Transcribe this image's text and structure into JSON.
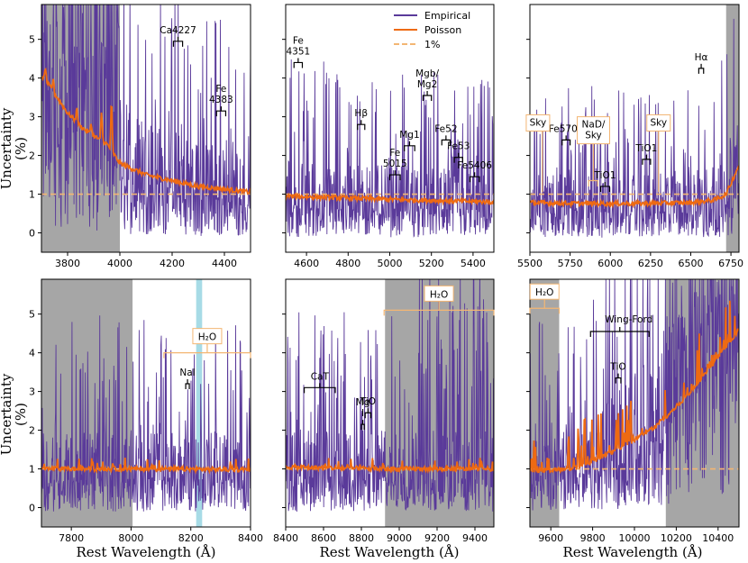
{
  "colors": {
    "empirical": "#5a3a9a",
    "poisson": "#ee6a12",
    "one_percent": "#f3b673",
    "shade_gray": "#a6a6a6",
    "shade_blue": "#a7dbe6",
    "box_edge": "#f3b673"
  },
  "labels": {
    "ylabel_line1": "Uncertainty",
    "ylabel_line2": "(%)",
    "xlabel": "Rest Wavelength (Å)"
  },
  "legend": {
    "empirical": "Empirical",
    "poisson": "Poisson",
    "one_percent": "1%"
  },
  "chart_data": [
    {
      "type": "line",
      "panel": 1,
      "xlim": [
        3700,
        4500
      ],
      "ylim": [
        -0.5,
        5.9
      ],
      "xticks": [
        3800,
        4000,
        4200,
        4400
      ],
      "yticks": [
        0,
        1,
        2,
        3,
        4,
        5
      ],
      "shaded": [
        {
          "x0": 3700,
          "x1": 4000,
          "color": "gray"
        }
      ],
      "poisson_profile": [
        [
          3700,
          4.05
        ],
        [
          3720,
          3.9
        ],
        [
          3760,
          3.5
        ],
        [
          3800,
          3.1
        ],
        [
          3850,
          2.75
        ],
        [
          3900,
          2.5
        ],
        [
          3950,
          2.3
        ],
        [
          4000,
          1.8
        ],
        [
          4100,
          1.5
        ],
        [
          4200,
          1.35
        ],
        [
          4300,
          1.2
        ],
        [
          4400,
          1.13
        ],
        [
          4500,
          1.05
        ]
      ],
      "poisson_spikes": [
        [
          3715,
          4.3
        ],
        [
          3745,
          4.0
        ],
        [
          3770,
          3.2
        ],
        [
          3815,
          3.0
        ],
        [
          3835,
          3.3
        ],
        [
          3890,
          2.85
        ],
        [
          3930,
          3.2
        ],
        [
          3968,
          3.6
        ]
      ],
      "features": [
        {
          "name": "Ca4227",
          "x0": 4205,
          "x1": 4240,
          "y": 4.95
        },
        {
          "name": "Fe\n4383",
          "x0": 4370,
          "x1": 4405,
          "y": 3.15
        }
      ]
    },
    {
      "type": "line",
      "panel": 2,
      "xlim": [
        4500,
        5500
      ],
      "ylim": [
        -0.5,
        5.9
      ],
      "xticks": [
        4600,
        4800,
        5000,
        5200,
        5400
      ],
      "yticks": [
        0,
        1,
        2,
        3,
        4,
        5
      ],
      "shaded": [],
      "poisson_profile": [
        [
          4500,
          0.95
        ],
        [
          4800,
          0.9
        ],
        [
          5100,
          0.85
        ],
        [
          5500,
          0.8
        ]
      ],
      "poisson_spikes": [],
      "features": [
        {
          "name": "Fe\n4351",
          "x0": 4540,
          "x1": 4580,
          "y": 4.4
        },
        {
          "name": "Hβ",
          "x0": 4845,
          "x1": 4880,
          "y": 2.8
        },
        {
          "name": "Fe\n5015",
          "x0": 5000,
          "x1": 5050,
          "y": 1.5
        },
        {
          "name": "Mg1",
          "x0": 5070,
          "x1": 5120,
          "y": 2.25
        },
        {
          "name": "Mgb/\nMg2",
          "x0": 5160,
          "x1": 5200,
          "y": 3.55
        },
        {
          "name": "Fe52",
          "x0": 5250,
          "x1": 5290,
          "y": 2.4
        },
        {
          "name": "Fe53",
          "x0": 5310,
          "x1": 5350,
          "y": 1.95
        },
        {
          "name": "Fe5406",
          "x0": 5385,
          "x1": 5430,
          "y": 1.45
        }
      ],
      "legend": true
    },
    {
      "type": "line",
      "panel": 3,
      "xlim": [
        5500,
        6800
      ],
      "ylim": [
        -0.5,
        5.9
      ],
      "xticks": [
        5500,
        5750,
        6000,
        6250,
        6500,
        6750
      ],
      "yticks": [
        0,
        1,
        2,
        3,
        4,
        5
      ],
      "shaded": [
        {
          "x0": 6720,
          "x1": 6800,
          "color": "gray"
        }
      ],
      "poisson_profile": [
        [
          5500,
          0.78
        ],
        [
          5800,
          0.76
        ],
        [
          6200,
          0.76
        ],
        [
          6500,
          0.78
        ],
        [
          6650,
          0.85
        ],
        [
          6720,
          1.0
        ],
        [
          6800,
          1.75
        ]
      ],
      "poisson_spikes": [],
      "features": [
        {
          "name": "Fe5709",
          "x0": 5700,
          "x1": 5750,
          "y": 2.4
        },
        {
          "name": "TiO1",
          "x0": 5940,
          "x1": 5995,
          "y": 1.2
        },
        {
          "name": "TiO1",
          "x0": 6200,
          "x1": 6250,
          "y": 1.9
        },
        {
          "name": "Hα",
          "x0": 6550,
          "x1": 6580,
          "y": 4.25
        }
      ],
      "boxed": [
        {
          "name": "Sky",
          "x": 5550,
          "line_x": 5577
        },
        {
          "name": "NaD/\nSky",
          "x": 5895,
          "line_x": 5893
        },
        {
          "name": "Sky",
          "x": 6300,
          "line_x": 6300
        }
      ]
    },
    {
      "type": "line",
      "panel": 4,
      "xlim": [
        7700,
        8400
      ],
      "ylim": [
        -0.5,
        5.9
      ],
      "xticks": [
        7800,
        8000,
        8200,
        8400
      ],
      "yticks": [
        0,
        1,
        2,
        3,
        4,
        5
      ],
      "shaded": [
        {
          "x0": 7700,
          "x1": 8005,
          "color": "gray"
        },
        {
          "x0": 8218,
          "x1": 8238,
          "color": "blue"
        }
      ],
      "poisson_profile": [
        [
          7700,
          1.0
        ],
        [
          8100,
          1.0
        ],
        [
          8400,
          0.98
        ]
      ],
      "poisson_spikes": [],
      "features": [
        {
          "name": "NaI",
          "x0": 8183,
          "x1": 8195,
          "y": 3.2
        }
      ],
      "h2o": [
        {
          "name": "H₂O",
          "x0": 8110,
          "x1": 8400,
          "y": 4.0
        }
      ]
    },
    {
      "type": "line",
      "panel": 5,
      "xlim": [
        8400,
        9500
      ],
      "ylim": [
        -0.5,
        5.9
      ],
      "xticks": [
        8400,
        8600,
        8800,
        9000,
        9200,
        9400
      ],
      "yticks": [
        0,
        1,
        2,
        3,
        4,
        5
      ],
      "shaded": [
        {
          "x0": 8925,
          "x1": 9500,
          "color": "gray"
        }
      ],
      "poisson_profile": [
        [
          8400,
          1.05
        ],
        [
          8900,
          1.0
        ],
        [
          9300,
          1.0
        ],
        [
          9500,
          1.0
        ]
      ],
      "poisson_spikes": [],
      "features": [
        {
          "name": "CaT",
          "x0": 8498,
          "x1": 8662,
          "y": 3.1
        },
        {
          "name": "Mg\nI",
          "x0": 8800,
          "x1": 8815,
          "y": 2.15
        },
        {
          "name": "TiO",
          "x0": 8820,
          "x1": 8850,
          "y": 2.45
        }
      ],
      "h2o": [
        {
          "name": "H₂O",
          "x0": 8920,
          "x1": 9500,
          "y": 5.1
        }
      ]
    },
    {
      "type": "line",
      "panel": 6,
      "xlim": [
        9500,
        10500
      ],
      "ylim": [
        -0.5,
        5.9
      ],
      "xticks": [
        9600,
        9800,
        10000,
        10200,
        10400
      ],
      "yticks": [
        0,
        1,
        2,
        3,
        4,
        5
      ],
      "shaded": [
        {
          "x0": 9500,
          "x1": 9640,
          "color": "gray"
        },
        {
          "x0": 10150,
          "x1": 10500,
          "color": "gray"
        }
      ],
      "poisson_profile": [
        [
          9500,
          0.95
        ],
        [
          9700,
          1.0
        ],
        [
          9800,
          1.2
        ],
        [
          9900,
          1.45
        ],
        [
          10000,
          1.75
        ],
        [
          10100,
          2.1
        ],
        [
          10200,
          2.6
        ],
        [
          10300,
          3.2
        ],
        [
          10400,
          3.9
        ],
        [
          10500,
          4.6
        ]
      ],
      "poisson_spikes": [],
      "features": [
        {
          "name": "TiO",
          "x0": 9910,
          "x1": 9935,
          "y": 3.35
        }
      ],
      "h2o": [
        {
          "name": "H₂O",
          "x0": 9500,
          "x1": 9640,
          "y": 5.15
        }
      ],
      "wingford": {
        "name": "Wing-Ford",
        "x0": 9790,
        "x1": 10070,
        "y": 4.55
      }
    }
  ]
}
